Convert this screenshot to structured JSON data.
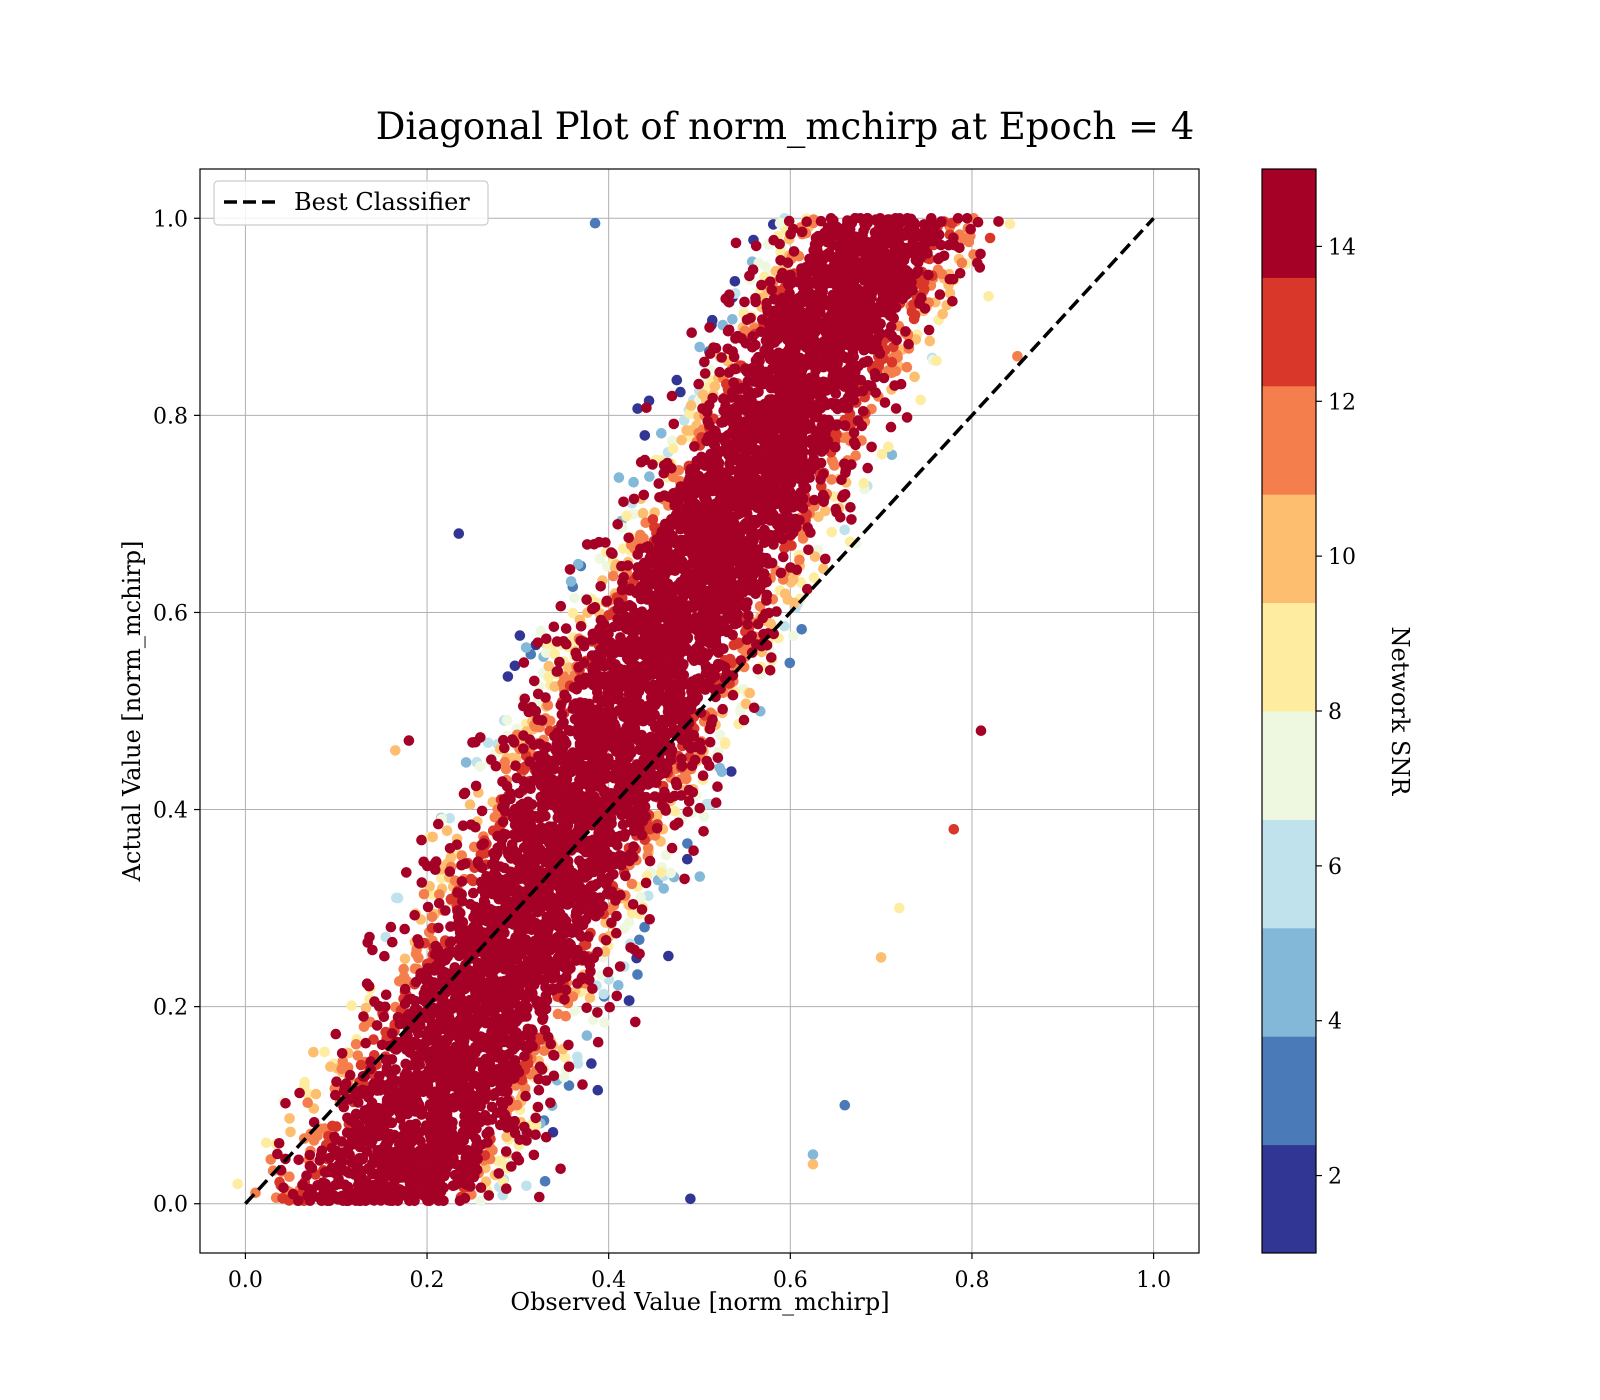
{
  "chart_data": {
    "type": "scatter",
    "title": "Diagonal Plot of norm_mchirp at Epoch = 4",
    "xlabel": "Observed Value [norm_mchirp]",
    "ylabel": "Actual Value [norm_mchirp]",
    "xlim": [
      -0.05,
      1.05
    ],
    "ylim": [
      -0.05,
      1.05
    ],
    "xticks": [
      0.0,
      0.2,
      0.4,
      0.6,
      0.8,
      1.0
    ],
    "yticks": [
      0.0,
      0.2,
      0.4,
      0.6,
      0.8,
      1.0
    ],
    "xtick_labels": [
      "0.0",
      "0.2",
      "0.4",
      "0.6",
      "0.8",
      "1.0"
    ],
    "ytick_labels": [
      "0.0",
      "0.2",
      "0.4",
      "0.6",
      "0.8",
      "1.0"
    ],
    "grid": true,
    "legend": {
      "position": "top-left",
      "entries": [
        "Best Classifier"
      ]
    },
    "reference_line": {
      "name": "Best Classifier",
      "style": "dashed",
      "color": "#000000",
      "x": [
        0.0,
        1.0
      ],
      "y": [
        0.0,
        1.0
      ]
    },
    "colorbar": {
      "label": "Network SNR",
      "range": [
        1,
        15
      ],
      "ticks": [
        2,
        4,
        6,
        8,
        10,
        12,
        14
      ],
      "tick_labels": [
        "2",
        "4",
        "6",
        "8",
        "10",
        "12",
        "14"
      ],
      "bins": [
        {
          "from": 1.0,
          "to": 2.4,
          "color": "#313695"
        },
        {
          "from": 2.4,
          "to": 3.8,
          "color": "#4a7ab7"
        },
        {
          "from": 3.8,
          "to": 5.2,
          "color": "#84b8d8"
        },
        {
          "from": 5.2,
          "to": 6.6,
          "color": "#bfe2ed"
        },
        {
          "from": 6.6,
          "to": 8.0,
          "color": "#eef8e0"
        },
        {
          "from": 8.0,
          "to": 9.4,
          "color": "#feeda1"
        },
        {
          "from": 9.4,
          "to": 10.8,
          "color": "#fdbe70"
        },
        {
          "from": 10.8,
          "to": 12.2,
          "color": "#f57f4c"
        },
        {
          "from": 12.2,
          "to": 13.6,
          "color": "#d93729"
        },
        {
          "from": 13.6,
          "to": 15.0,
          "color": "#a50026"
        }
      ]
    },
    "point_cloud": {
      "band_centerline": {
        "intercept": 0.15,
        "slope": 0.55
      },
      "band_halfwidth": {
        "at_y0": 0.175,
        "at_y1": 0.14
      },
      "points_shown": [
        [
          0.13,
          0.19,
          14.5
        ],
        [
          0.18,
          0.47,
          14.5
        ],
        [
          0.165,
          0.46,
          10.5
        ],
        [
          0.235,
          0.68,
          2.0
        ],
        [
          0.66,
          0.1,
          3.5
        ],
        [
          0.625,
          0.05,
          4.0
        ],
        [
          0.625,
          0.04,
          10.0
        ],
        [
          0.81,
          0.48,
          14.5
        ],
        [
          0.85,
          0.86,
          11.5
        ],
        [
          0.82,
          0.98,
          12.5
        ],
        [
          0.385,
          0.995,
          2.5
        ],
        [
          0.49,
          0.005,
          2.0
        ],
        [
          0.72,
          0.3,
          9.0
        ],
        [
          0.7,
          0.25,
          10.0
        ],
        [
          0.78,
          0.38,
          12.5
        ]
      ]
    }
  }
}
